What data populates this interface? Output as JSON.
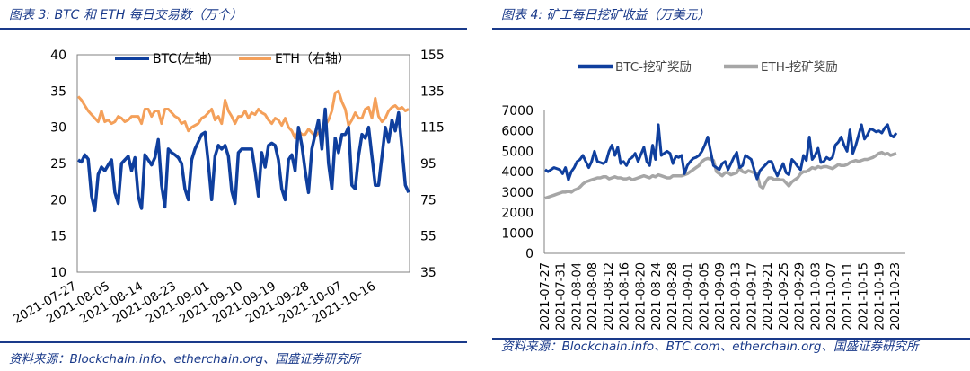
{
  "left_panel": {
    "title": "图表 3:  BTC 和 ETH 每日交易数（万个）",
    "source": "资料来源：Blockchain.info、etherchain.org、国盛证券研究所"
  },
  "right_panel": {
    "title": "图表 4:  矿工每日挖矿收益（万美元）",
    "source": "资料来源：Blockchain.info、BTC.com、etherchain.org、国盛证券研究所"
  },
  "colors": {
    "btc": "#0f3f9e",
    "eth": "#f4a05a",
    "eth_reward": "#a6a6a6",
    "brand": "#1a3a8a"
  },
  "chart_data": [
    {
      "type": "line",
      "title": "BTC 和 ETH 每日交易数（万个）",
      "x_ticks": [
        "2021-07-27",
        "2021-08-05",
        "2021-08-14",
        "2021-08-23",
        "2021-09-01",
        "2021-09-10",
        "2021-09-19",
        "2021-09-28",
        "2021-10-07",
        "2021-10-16"
      ],
      "y_left": {
        "min": 10,
        "max": 40,
        "ticks": [
          "10",
          "15",
          "20",
          "25",
          "30",
          "35",
          "40"
        ]
      },
      "y_right": {
        "min": 35,
        "max": 155,
        "ticks": [
          "35",
          "55",
          "75",
          "95",
          "115",
          "135",
          "155"
        ]
      },
      "legend": [
        "BTC(左轴)",
        "ETH（右轴）"
      ],
      "legend_position": "top",
      "series": [
        {
          "name": "BTC(左轴)",
          "axis": "left",
          "values": [
            25.5,
            25.2,
            26.2,
            25.6,
            20.5,
            18.5,
            23.5,
            24.5,
            24,
            24.8,
            25.5,
            21,
            19.5,
            25,
            25.5,
            26,
            24,
            25.8,
            20.5,
            18.8,
            26.2,
            25.5,
            24.8,
            25.8,
            28.3,
            22,
            19,
            27,
            26.5,
            26.2,
            25.8,
            25,
            21.5,
            20,
            25.5,
            27,
            28,
            29,
            29.3,
            25,
            20,
            26,
            27.5,
            27,
            27.5,
            26,
            21.2,
            19.5,
            26.5,
            27,
            27,
            27,
            27,
            24,
            20.5,
            26.5,
            24.5,
            27.5,
            27.8,
            27.5,
            25.5,
            21.5,
            20,
            25.5,
            26.2,
            24,
            30,
            27.5,
            24,
            21,
            27,
            29,
            31,
            27,
            32.5,
            25,
            21.5,
            28.5,
            26.5,
            29,
            29,
            30,
            22,
            21.5,
            26,
            29,
            28.5,
            30,
            26,
            22,
            22,
            26,
            30,
            28,
            31,
            29.5,
            32,
            27,
            22,
            21
          ]
        },
        {
          "name": "ETH（右轴）",
          "axis": "right",
          "values": [
            132,
            130,
            127,
            124,
            122,
            120,
            118,
            124,
            118,
            119,
            117,
            118,
            121,
            120,
            118,
            119,
            121,
            121,
            121,
            117,
            125,
            125,
            121,
            124,
            124,
            117,
            125,
            125,
            123,
            121,
            120,
            117,
            118,
            113,
            115,
            116,
            117,
            120,
            121,
            123,
            125,
            119,
            121,
            117,
            130,
            124,
            121,
            117,
            121,
            121,
            124,
            120,
            123,
            122,
            125,
            123,
            122,
            119,
            117,
            120,
            119,
            116,
            120,
            115,
            113,
            109,
            113,
            111,
            111,
            114,
            112,
            110,
            112,
            113,
            116,
            119,
            124,
            134,
            135,
            129,
            125,
            116,
            119,
            123,
            120,
            120,
            125,
            126,
            120,
            131,
            121,
            118,
            120,
            124,
            126,
            127,
            125,
            126,
            124,
            125
          ]
        }
      ]
    },
    {
      "type": "line",
      "title": "矿工每日挖矿收益（万美元）",
      "x_ticks": [
        "2021-07-27",
        "2021-07-31",
        "2021-08-04",
        "2021-08-08",
        "2021-08-12",
        "2021-08-16",
        "2021-08-20",
        "2021-08-24",
        "2021-08-28",
        "2021-09-01",
        "2021-09-05",
        "2021-09-09",
        "2021-09-13",
        "2021-09-17",
        "2021-09-21",
        "2021-09-25",
        "2021-09-29",
        "2021-10-03",
        "2021-10-07",
        "2021-10-11",
        "2021-10-15",
        "2021-10-19",
        "2021-10-23"
      ],
      "y": {
        "min": 0,
        "max": 7000,
        "ticks": [
          "0",
          "1000",
          "2000",
          "3000",
          "4000",
          "5000",
          "6000",
          "7000"
        ]
      },
      "legend": [
        "BTC-挖矿奖励",
        "ETH-挖矿奖励"
      ],
      "legend_position": "top",
      "series": [
        {
          "name": "BTC-挖矿奖励",
          "values": [
            4100,
            4000,
            4100,
            4200,
            4150,
            4100,
            3900,
            4200,
            3600,
            4000,
            4200,
            4500,
            4600,
            4800,
            4500,
            4200,
            4500,
            5000,
            4500,
            4450,
            4400,
            4500,
            5000,
            5300,
            4800,
            5200,
            4400,
            4500,
            4300,
            4600,
            4700,
            4900,
            4500,
            4850,
            5200,
            4500,
            4300,
            5300,
            4600,
            6300,
            4800,
            4900,
            5000,
            4900,
            4400,
            4750,
            4700,
            4800,
            3900,
            4300,
            4500,
            4650,
            4700,
            4800,
            5000,
            5300,
            5700,
            5000,
            4300,
            4200,
            4100,
            4400,
            4500,
            4100,
            4400,
            4700,
            4950,
            4200,
            4300,
            4800,
            4700,
            4600,
            4100,
            3650,
            4050,
            4200,
            4350,
            4500,
            4500,
            4100,
            3800,
            4100,
            4400,
            3950,
            3850,
            4600,
            4450,
            4250,
            4100,
            4800,
            4550,
            5700,
            4600,
            4800,
            5150,
            4450,
            4500,
            4700,
            4600,
            4700,
            5300,
            5450,
            5700,
            5300,
            5000,
            6050,
            4900,
            5300,
            5800,
            6300,
            5600,
            5800,
            6100,
            6050,
            5950,
            6000,
            5900,
            6150,
            6300,
            5800,
            5700,
            5900
          ]
        },
        {
          "name": "ETH-挖矿奖励",
          "values": [
            2700,
            2750,
            2800,
            2850,
            2900,
            2950,
            3000,
            3000,
            3050,
            3000,
            3100,
            3150,
            3250,
            3400,
            3500,
            3550,
            3600,
            3650,
            3700,
            3700,
            3750,
            3750,
            3650,
            3700,
            3750,
            3700,
            3700,
            3650,
            3650,
            3700,
            3600,
            3650,
            3700,
            3750,
            3800,
            3750,
            3700,
            3800,
            3750,
            3850,
            3800,
            3750,
            3700,
            3700,
            3800,
            3800,
            3800,
            3800,
            3850,
            3900,
            4000,
            4100,
            4200,
            4300,
            4500,
            4600,
            4650,
            4600,
            4550,
            4000,
            3900,
            3800,
            3950,
            3950,
            3850,
            3900,
            3950,
            4200,
            4000,
            3950,
            4050,
            4000,
            3950,
            3900,
            3300,
            3200,
            3500,
            3700,
            3700,
            3600,
            3650,
            3600,
            3600,
            3450,
            3300,
            3500,
            3600,
            3700,
            3900,
            4000,
            4000,
            4100,
            4200,
            4150,
            4250,
            4200,
            4250,
            4250,
            4200,
            4150,
            4250,
            4350,
            4300,
            4300,
            4350,
            4450,
            4500,
            4550,
            4500,
            4550,
            4600,
            4600,
            4650,
            4700,
            4800,
            4900,
            4950,
            4850,
            4900,
            4800,
            4850,
            4900
          ]
        }
      ]
    }
  ]
}
